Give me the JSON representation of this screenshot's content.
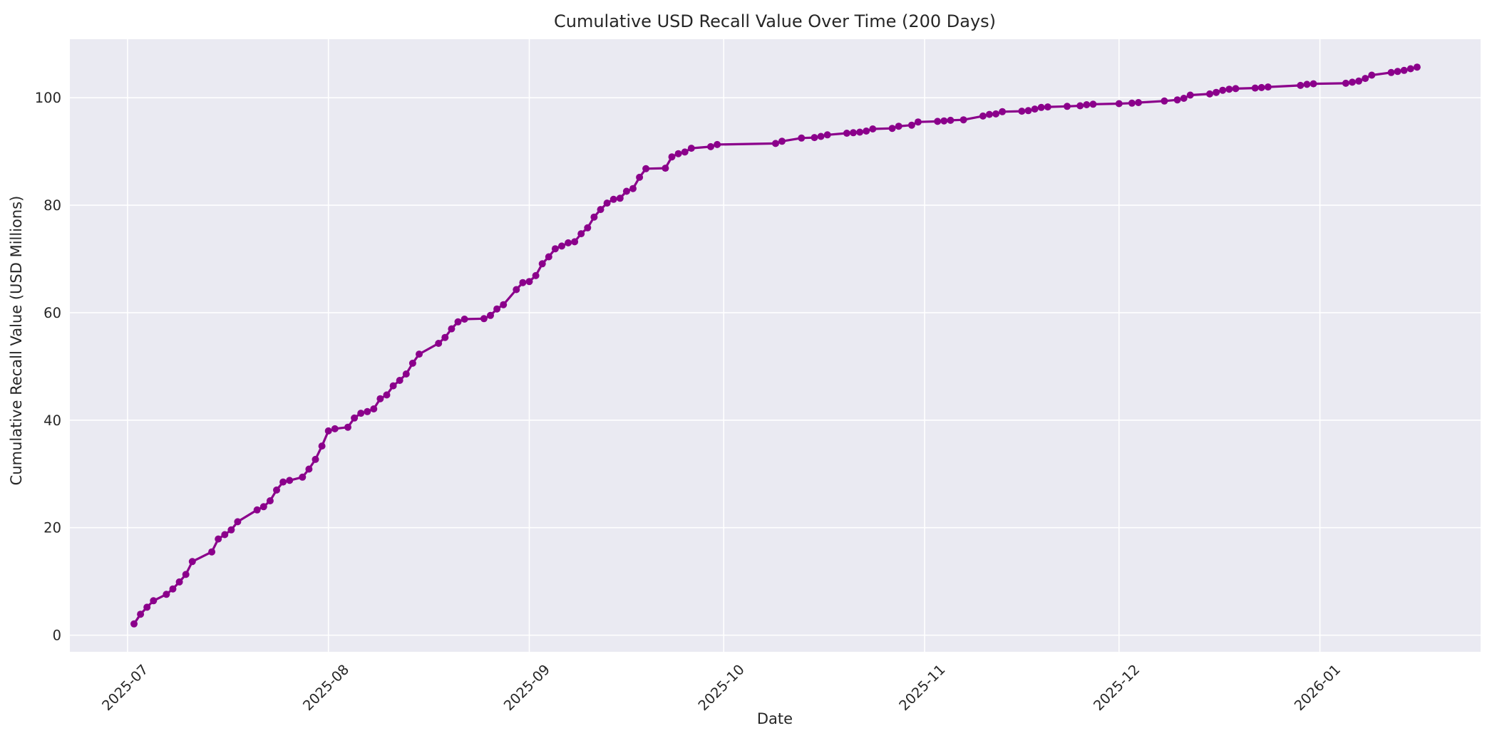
{
  "chart_data": {
    "type": "line",
    "title": "Cumulative USD Recall Value Over Time (200 Days)",
    "xlabel": "Date",
    "ylabel": "Cumulative Recall Value (USD Millions)",
    "grid": true,
    "legend": false,
    "ylim": [
      -3.1,
      110.9
    ],
    "xlim_days": [
      -8.9,
      208.8
    ],
    "x_epoch": "2025-07-01",
    "y_ticks": [
      0,
      20,
      40,
      60,
      80,
      100
    ],
    "x_ticks": [
      {
        "date": "2025-07-01",
        "label": "2025-07"
      },
      {
        "date": "2025-08-01",
        "label": "2025-08"
      },
      {
        "date": "2025-09-01",
        "label": "2025-09"
      },
      {
        "date": "2025-10-01",
        "label": "2025-10"
      },
      {
        "date": "2025-11-01",
        "label": "2025-11"
      },
      {
        "date": "2025-12-01",
        "label": "2025-12"
      },
      {
        "date": "2026-01-01",
        "label": "2026-01"
      }
    ],
    "colors": {
      "line": "#8B008B",
      "marker": "#8B008B",
      "plot_background": "#EAEAF2",
      "gridline": "#FFFFFF",
      "text": "#262626",
      "figure_background": "#FFFFFF"
    },
    "series": [
      {
        "name": "Cumulative Recall Value",
        "points": [
          [
            "2025-07-02",
            2.1
          ],
          [
            "2025-07-03",
            3.9
          ],
          [
            "2025-07-04",
            5.2
          ],
          [
            "2025-07-05",
            6.4
          ],
          [
            "2025-07-07",
            7.6
          ],
          [
            "2025-07-08",
            8.6
          ],
          [
            "2025-07-09",
            9.9
          ],
          [
            "2025-07-10",
            11.3
          ],
          [
            "2025-07-11",
            13.7
          ],
          [
            "2025-07-14",
            15.5
          ],
          [
            "2025-07-15",
            17.9
          ],
          [
            "2025-07-16",
            18.7
          ],
          [
            "2025-07-17",
            19.6
          ],
          [
            "2025-07-18",
            21.1
          ],
          [
            "2025-07-21",
            23.3
          ],
          [
            "2025-07-22",
            23.9
          ],
          [
            "2025-07-23",
            25.0
          ],
          [
            "2025-07-24",
            27.0
          ],
          [
            "2025-07-25",
            28.5
          ],
          [
            "2025-07-26",
            28.8
          ],
          [
            "2025-07-28",
            29.4
          ],
          [
            "2025-07-29",
            30.9
          ],
          [
            "2025-07-30",
            32.7
          ],
          [
            "2025-07-31",
            35.2
          ],
          [
            "2025-08-01",
            38.0
          ],
          [
            "2025-08-02",
            38.4
          ],
          [
            "2025-08-04",
            38.7
          ],
          [
            "2025-08-05",
            40.4
          ],
          [
            "2025-08-06",
            41.3
          ],
          [
            "2025-08-07",
            41.6
          ],
          [
            "2025-08-08",
            42.1
          ],
          [
            "2025-08-09",
            44.0
          ],
          [
            "2025-08-10",
            44.7
          ],
          [
            "2025-08-11",
            46.4
          ],
          [
            "2025-08-12",
            47.4
          ],
          [
            "2025-08-13",
            48.6
          ],
          [
            "2025-08-14",
            50.6
          ],
          [
            "2025-08-15",
            52.3
          ],
          [
            "2025-08-18",
            54.3
          ],
          [
            "2025-08-19",
            55.4
          ],
          [
            "2025-08-20",
            57.0
          ],
          [
            "2025-08-21",
            58.3
          ],
          [
            "2025-08-22",
            58.8
          ],
          [
            "2025-08-25",
            58.9
          ],
          [
            "2025-08-26",
            59.5
          ],
          [
            "2025-08-27",
            60.7
          ],
          [
            "2025-08-28",
            61.5
          ],
          [
            "2025-08-30",
            64.3
          ],
          [
            "2025-08-31",
            65.6
          ],
          [
            "2025-09-01",
            65.8
          ],
          [
            "2025-09-02",
            66.9
          ],
          [
            "2025-09-03",
            69.1
          ],
          [
            "2025-09-04",
            70.4
          ],
          [
            "2025-09-05",
            71.9
          ],
          [
            "2025-09-06",
            72.4
          ],
          [
            "2025-09-07",
            73.0
          ],
          [
            "2025-09-08",
            73.2
          ],
          [
            "2025-09-09",
            74.7
          ],
          [
            "2025-09-10",
            75.8
          ],
          [
            "2025-09-11",
            77.8
          ],
          [
            "2025-09-12",
            79.2
          ],
          [
            "2025-09-13",
            80.4
          ],
          [
            "2025-09-14",
            81.1
          ],
          [
            "2025-09-15",
            81.3
          ],
          [
            "2025-09-16",
            82.6
          ],
          [
            "2025-09-17",
            83.1
          ],
          [
            "2025-09-18",
            85.2
          ],
          [
            "2025-09-19",
            86.8
          ],
          [
            "2025-09-22",
            86.9
          ],
          [
            "2025-09-23",
            89.0
          ],
          [
            "2025-09-24",
            89.6
          ],
          [
            "2025-09-25",
            89.9
          ],
          [
            "2025-09-26",
            90.6
          ],
          [
            "2025-09-29",
            90.9
          ],
          [
            "2025-09-30",
            91.3
          ],
          [
            "2025-10-09",
            91.5
          ],
          [
            "2025-10-10",
            91.9
          ],
          [
            "2025-10-13",
            92.5
          ],
          [
            "2025-10-15",
            92.6
          ],
          [
            "2025-10-16",
            92.8
          ],
          [
            "2025-10-17",
            93.1
          ],
          [
            "2025-10-20",
            93.4
          ],
          [
            "2025-10-21",
            93.5
          ],
          [
            "2025-10-22",
            93.6
          ],
          [
            "2025-10-23",
            93.8
          ],
          [
            "2025-10-24",
            94.2
          ],
          [
            "2025-10-27",
            94.3
          ],
          [
            "2025-10-28",
            94.7
          ],
          [
            "2025-10-30",
            94.9
          ],
          [
            "2025-10-31",
            95.5
          ],
          [
            "2025-11-03",
            95.6
          ],
          [
            "2025-11-04",
            95.7
          ],
          [
            "2025-11-05",
            95.8
          ],
          [
            "2025-11-07",
            95.9
          ],
          [
            "2025-11-10",
            96.6
          ],
          [
            "2025-11-11",
            96.9
          ],
          [
            "2025-11-12",
            97.0
          ],
          [
            "2025-11-13",
            97.4
          ],
          [
            "2025-11-16",
            97.5
          ],
          [
            "2025-11-17",
            97.6
          ],
          [
            "2025-11-18",
            97.9
          ],
          [
            "2025-11-19",
            98.2
          ],
          [
            "2025-11-20",
            98.3
          ],
          [
            "2025-11-23",
            98.4
          ],
          [
            "2025-11-25",
            98.5
          ],
          [
            "2025-11-26",
            98.7
          ],
          [
            "2025-11-27",
            98.8
          ],
          [
            "2025-12-01",
            98.9
          ],
          [
            "2025-12-03",
            99.0
          ],
          [
            "2025-12-04",
            99.1
          ],
          [
            "2025-12-08",
            99.4
          ],
          [
            "2025-12-10",
            99.6
          ],
          [
            "2025-12-11",
            99.9
          ],
          [
            "2025-12-12",
            100.5
          ],
          [
            "2025-12-15",
            100.7
          ],
          [
            "2025-12-16",
            101.0
          ],
          [
            "2025-12-17",
            101.4
          ],
          [
            "2025-12-18",
            101.6
          ],
          [
            "2025-12-19",
            101.7
          ],
          [
            "2025-12-22",
            101.8
          ],
          [
            "2025-12-23",
            101.9
          ],
          [
            "2025-12-24",
            102.0
          ],
          [
            "2025-12-29",
            102.3
          ],
          [
            "2025-12-30",
            102.5
          ],
          [
            "2025-12-31",
            102.6
          ],
          [
            "2026-01-05",
            102.7
          ],
          [
            "2026-01-06",
            102.9
          ],
          [
            "2026-01-07",
            103.1
          ],
          [
            "2026-01-08",
            103.6
          ],
          [
            "2026-01-09",
            104.2
          ],
          [
            "2026-01-12",
            104.7
          ],
          [
            "2026-01-13",
            104.9
          ],
          [
            "2026-01-14",
            105.1
          ],
          [
            "2026-01-15",
            105.4
          ],
          [
            "2026-01-16",
            105.7
          ]
        ]
      }
    ]
  }
}
